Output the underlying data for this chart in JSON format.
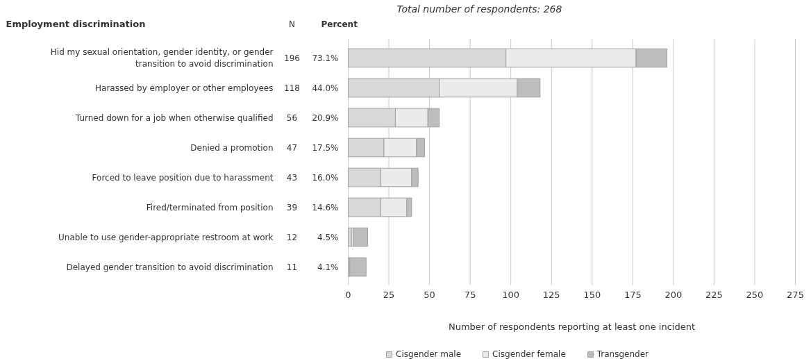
{
  "chart_data": {
    "type": "bar",
    "orientation": "horizontal",
    "stacked": true,
    "title": "Total number of respondents: 268",
    "ylabel": "Employment discrimination",
    "xlabel": "Number of respondents reporting at least one incident",
    "categories": [
      "Hid my sexual orientation, gender identity, or gender transition to avoid discrimination",
      "Harassed by employer or other employees",
      "Turned down for a job when otherwise qualified",
      "Denied a promotion",
      "Forced to leave position due to harassment",
      "Fired/terminated from position",
      "Unable to use gender-appropriate restroom at work",
      "Delayed gender transition to avoid discrimination"
    ],
    "series": [
      {
        "name": "Cisgender male",
        "color": "#d9d9d9",
        "values": [
          97,
          56,
          29,
          22,
          20,
          20,
          2,
          1
        ]
      },
      {
        "name": "Cisgender female",
        "color": "#ebebeb",
        "values": [
          80,
          48,
          20,
          20,
          19,
          16,
          1,
          0
        ]
      },
      {
        "name": "Transgender",
        "color": "#bdbdbd",
        "values": [
          19,
          14,
          7,
          5,
          4,
          3,
          9,
          10
        ]
      }
    ],
    "annotations": [
      "N",
      "Percent",
      "196",
      "118",
      "56",
      "47",
      "43",
      "39",
      "12",
      "11",
      "73.1%",
      "44.0%",
      "20.9%",
      "17.5%",
      "16.0%",
      "14.6%",
      "4.5%",
      "4.1%"
    ],
    "xlim": [
      0,
      275
    ],
    "xticks": [
      0,
      25,
      50,
      75,
      100,
      125,
      150,
      175,
      200,
      225,
      250,
      275
    ],
    "grid": "x",
    "legend": "bottom"
  }
}
